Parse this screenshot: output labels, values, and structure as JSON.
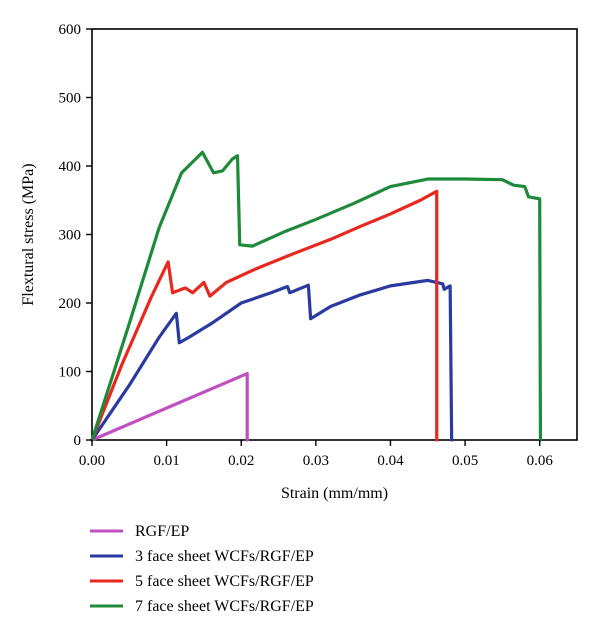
{
  "chart_data": {
    "type": "line",
    "title": "",
    "xlabel": "Strain (mm/mm)",
    "ylabel": "Flextural stress (MPa)",
    "xlim": [
      0,
      0.065
    ],
    "ylim": [
      0,
      600
    ],
    "xticks": [
      0.0,
      0.01,
      0.02,
      0.03,
      0.04,
      0.05,
      0.06
    ],
    "xtick_labels": [
      "0.00",
      "0.01",
      "0.02",
      "0.03",
      "0.04",
      "0.05",
      "0.06"
    ],
    "yticks": [
      0,
      100,
      200,
      300,
      400,
      500,
      600
    ],
    "ytick_labels": [
      "0",
      "100",
      "200",
      "300",
      "400",
      "500",
      "600"
    ],
    "grid": false,
    "legend_position": "below",
    "series": [
      {
        "name": "RGF/EP",
        "color": "#c050c0",
        "points": [
          [
            0,
            0
          ],
          [
            0.0208,
            97
          ],
          [
            0.0208,
            0
          ]
        ]
      },
      {
        "name": "3 face sheet WCFs/RGF/EP",
        "color": "#2b3aa0",
        "points": [
          [
            0,
            0
          ],
          [
            0.005,
            80
          ],
          [
            0.009,
            150
          ],
          [
            0.0113,
            185
          ],
          [
            0.0117,
            142
          ],
          [
            0.013,
            150
          ],
          [
            0.016,
            170
          ],
          [
            0.02,
            200
          ],
          [
            0.024,
            215
          ],
          [
            0.0262,
            224
          ],
          [
            0.0265,
            215
          ],
          [
            0.029,
            226
          ],
          [
            0.0293,
            177
          ],
          [
            0.032,
            195
          ],
          [
            0.036,
            212
          ],
          [
            0.04,
            225
          ],
          [
            0.045,
            233
          ],
          [
            0.047,
            228
          ],
          [
            0.0472,
            220
          ],
          [
            0.048,
            225
          ],
          [
            0.0482,
            0
          ]
        ]
      },
      {
        "name": "5 face sheet WCFs/RGF/EP",
        "color": "#e8281e",
        "points": [
          [
            0,
            0
          ],
          [
            0.004,
            110
          ],
          [
            0.008,
            210
          ],
          [
            0.0102,
            260
          ],
          [
            0.0108,
            215
          ],
          [
            0.0125,
            222
          ],
          [
            0.0135,
            215
          ],
          [
            0.015,
            230
          ],
          [
            0.0158,
            210
          ],
          [
            0.018,
            230
          ],
          [
            0.022,
            250
          ],
          [
            0.027,
            272
          ],
          [
            0.032,
            293
          ],
          [
            0.036,
            312
          ],
          [
            0.04,
            330
          ],
          [
            0.044,
            350
          ],
          [
            0.0462,
            363
          ],
          [
            0.0462,
            0
          ]
        ]
      },
      {
        "name": "7 face sheet WCFs/RGF/EP",
        "color": "#1f8a3a",
        "points": [
          [
            0,
            0
          ],
          [
            0.005,
            170
          ],
          [
            0.009,
            310
          ],
          [
            0.012,
            390
          ],
          [
            0.0148,
            420
          ],
          [
            0.0163,
            390
          ],
          [
            0.0175,
            393
          ],
          [
            0.0188,
            410
          ],
          [
            0.0195,
            415
          ],
          [
            0.0198,
            285
          ],
          [
            0.0215,
            283
          ],
          [
            0.026,
            305
          ],
          [
            0.03,
            322
          ],
          [
            0.035,
            345
          ],
          [
            0.04,
            370
          ],
          [
            0.045,
            381
          ],
          [
            0.05,
            381
          ],
          [
            0.055,
            380
          ],
          [
            0.0565,
            372
          ],
          [
            0.058,
            370
          ],
          [
            0.0585,
            355
          ],
          [
            0.06,
            352
          ],
          [
            0.0601,
            0
          ]
        ]
      }
    ]
  }
}
